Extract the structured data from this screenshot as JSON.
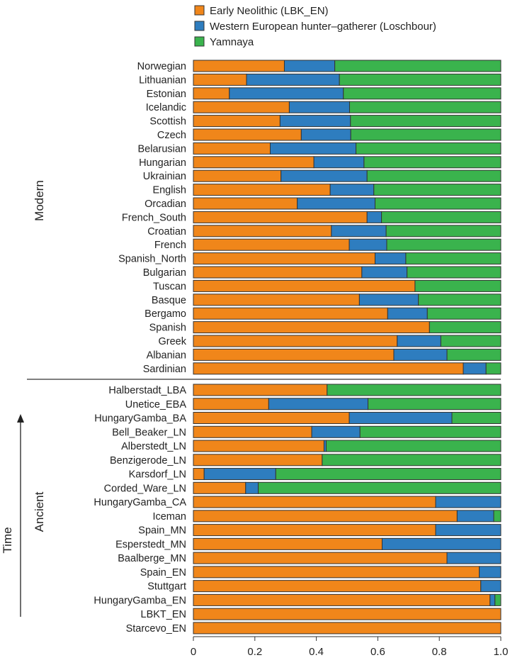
{
  "chart_data": {
    "type": "bar",
    "orientation": "horizontal",
    "stacked": true,
    "xlim": [
      0,
      1.0
    ],
    "xticks": [
      "0",
      "0.2",
      "0.4",
      "0.6",
      "0.8",
      "1.0"
    ],
    "grid": false,
    "legend_placement": "top",
    "series": [
      {
        "name": "Early Neolithic (LBK_EN)",
        "color": "#F0861A"
      },
      {
        "name": "Western European hunter–gatherer (Loschbour)",
        "color": "#2E7DBF"
      },
      {
        "name": "Yamnaya",
        "color": "#3AB34D"
      }
    ],
    "groups": [
      {
        "label": "Modern",
        "rows": [
          {
            "category": "Norwegian",
            "values": [
              0.296,
              0.164,
              0.54
            ]
          },
          {
            "category": "Lithuanian",
            "values": [
              0.173,
              0.302,
              0.525
            ]
          },
          {
            "category": "Estonian",
            "values": [
              0.117,
              0.371,
              0.512
            ]
          },
          {
            "category": "Icelandic",
            "values": [
              0.312,
              0.196,
              0.492
            ]
          },
          {
            "category": "Scottish",
            "values": [
              0.282,
              0.229,
              0.489
            ]
          },
          {
            "category": "Czech",
            "values": [
              0.351,
              0.161,
              0.488
            ]
          },
          {
            "category": "Belarusian",
            "values": [
              0.25,
              0.279,
              0.471
            ]
          },
          {
            "category": "Hungarian",
            "values": [
              0.392,
              0.163,
              0.445
            ]
          },
          {
            "category": "Ukrainian",
            "values": [
              0.285,
              0.28,
              0.435
            ]
          },
          {
            "category": "English",
            "values": [
              0.445,
              0.142,
              0.413
            ]
          },
          {
            "category": "Orcadian",
            "values": [
              0.338,
              0.253,
              0.409
            ]
          },
          {
            "category": "French_South",
            "values": [
              0.565,
              0.047,
              0.388
            ]
          },
          {
            "category": "Croatian",
            "values": [
              0.449,
              0.178,
              0.373
            ]
          },
          {
            "category": "French",
            "values": [
              0.507,
              0.122,
              0.371
            ]
          },
          {
            "category": "Spanish_North",
            "values": [
              0.591,
              0.1,
              0.309
            ]
          },
          {
            "category": "Bulgarian",
            "values": [
              0.548,
              0.147,
              0.305
            ]
          },
          {
            "category": "Tuscan",
            "values": [
              0.721,
              0.0,
              0.279
            ]
          },
          {
            "category": "Basque",
            "values": [
              0.54,
              0.192,
              0.268
            ]
          },
          {
            "category": "Bergamo",
            "values": [
              0.632,
              0.129,
              0.239
            ]
          },
          {
            "category": "Spanish",
            "values": [
              0.768,
              0.0,
              0.232
            ]
          },
          {
            "category": "Greek",
            "values": [
              0.663,
              0.142,
              0.195
            ]
          },
          {
            "category": "Albanian",
            "values": [
              0.652,
              0.173,
              0.175
            ]
          },
          {
            "category": "Sardinian",
            "values": [
              0.878,
              0.074,
              0.048
            ]
          }
        ]
      },
      {
        "label": "Ancient",
        "rows": [
          {
            "category": "Halberstadt_LBA",
            "values": [
              0.435,
              0.0,
              0.565
            ]
          },
          {
            "category": "Unetice_EBA",
            "values": [
              0.245,
              0.323,
              0.432
            ]
          },
          {
            "category": "HungaryGamba_BA",
            "values": [
              0.507,
              0.334,
              0.159
            ]
          },
          {
            "category": "Bell_Beaker_LN",
            "values": [
              0.385,
              0.157,
              0.458
            ]
          },
          {
            "category": "Alberstedt_LN",
            "values": [
              0.425,
              0.007,
              0.568
            ]
          },
          {
            "category": "Benzigerode_LN",
            "values": [
              0.419,
              0.0,
              0.581
            ]
          },
          {
            "category": "Karsdorf_LN",
            "values": [
              0.035,
              0.233,
              0.732
            ]
          },
          {
            "category": "Corded_Ware_LN",
            "values": [
              0.17,
              0.041,
              0.789
            ]
          },
          {
            "category": "HungaryGamba_CA",
            "values": [
              0.788,
              0.212,
              0.0
            ]
          },
          {
            "category": "Iceman",
            "values": [
              0.858,
              0.119,
              0.023
            ]
          },
          {
            "category": "Spain_MN",
            "values": [
              0.788,
              0.212,
              0.0
            ]
          },
          {
            "category": "Esperstedt_MN",
            "values": [
              0.614,
              0.386,
              0.0
            ]
          },
          {
            "category": "Baalberge_MN",
            "values": [
              0.825,
              0.175,
              0.0
            ]
          },
          {
            "category": "Spain_EN",
            "values": [
              0.93,
              0.07,
              0.0
            ]
          },
          {
            "category": "Stuttgart",
            "values": [
              0.935,
              0.065,
              0.0
            ]
          },
          {
            "category": "HungaryGamba_EN",
            "values": [
              0.965,
              0.016,
              0.019
            ]
          },
          {
            "category": "LBKT_EN",
            "values": [
              1.0,
              0.0,
              0.0
            ]
          },
          {
            "category": "Starcevo_EN",
            "values": [
              1.0,
              0.0,
              0.0
            ]
          }
        ]
      }
    ],
    "annotations": {
      "time_label": "Time"
    }
  }
}
